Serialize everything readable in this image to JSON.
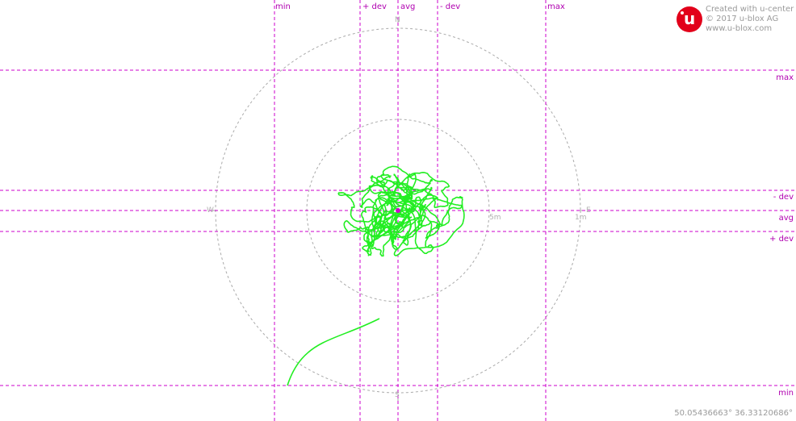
{
  "brand": {
    "line1": "Created with u-center",
    "line2": "© 2017 u-blox AG",
    "line3": "www.u-blox.com",
    "logo_letter": "u"
  },
  "vertical_labels": {
    "min": "min",
    "plus_dev": "+ dev",
    "avg": "avg",
    "minus_dev": "- dev",
    "max": "max"
  },
  "horizontal_labels": {
    "max": "max",
    "minus_dev": "- dev",
    "avg": "avg",
    "plus_dev": "+ dev",
    "min": "min"
  },
  "compass": {
    "n": "N",
    "s": "S",
    "e": "E",
    "w": "W"
  },
  "ring_labels": {
    "inner": "5m",
    "outer": "1m"
  },
  "coordinates": "50.05436663° 36.33120686°",
  "colors": {
    "track": "#22ee22",
    "guide": "#cc00cc",
    "ring": "#aaaaaa",
    "center": "#cc00cc"
  }
}
